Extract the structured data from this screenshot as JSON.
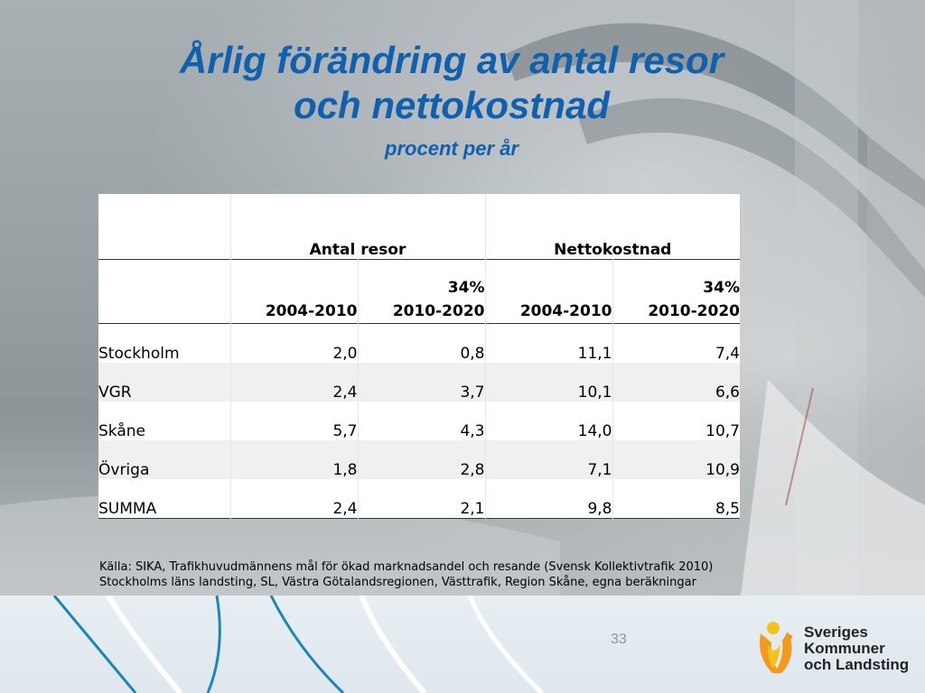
{
  "title": {
    "line1": "Årlig förändring av antal resor",
    "line2": "och nettokostnad",
    "subtitle": "procent per år"
  },
  "table": {
    "group_headers": [
      "",
      "Antal resor",
      "Nettokostnad"
    ],
    "sub_headers": [
      {
        "top": "",
        "bottom": ""
      },
      {
        "top": "",
        "bottom": "2004-2010"
      },
      {
        "top": "34%",
        "bottom": "2010-2020"
      },
      {
        "top": "",
        "bottom": "2004-2010"
      },
      {
        "top": "34%",
        "bottom": "2010-2020"
      }
    ],
    "rows": [
      {
        "name": "Stockholm",
        "values": [
          "2,0",
          "0,8",
          "11,1",
          "7,4"
        ]
      },
      {
        "name": "VGR",
        "values": [
          "2,4",
          "3,7",
          "10,1",
          "6,6"
        ]
      },
      {
        "name": "Skåne",
        "values": [
          "5,7",
          "4,3",
          "14,0",
          "10,7"
        ]
      },
      {
        "name": "Övriga",
        "values": [
          "1,8",
          "2,8",
          "7,1",
          "10,9"
        ]
      },
      {
        "name": "SUMMA",
        "values": [
          "2,4",
          "2,1",
          "9,8",
          "8,5"
        ]
      }
    ]
  },
  "source": {
    "line1": "Källa: SIKA, Trafikhuvudmännens mål för ökad marknadsandel och resande (Svensk Kollektivtrafik 2010)",
    "line2": "Stockholms läns landsting, SL, Västra Götalandsregionen, Västtrafik, Region Skåne, egna beräkningar"
  },
  "page_number": "33",
  "logo": {
    "icon": "skl-figure-logo-icon",
    "line1": "Sveriges",
    "line2": "Kommuner",
    "line3": "och Landsting",
    "colors": {
      "orange": "#f39a1e",
      "yellow": "#f7c21a"
    }
  },
  "colors": {
    "title": "#1060b0",
    "band": "#e4ecf1",
    "band_lines": "#1b86b8"
  }
}
